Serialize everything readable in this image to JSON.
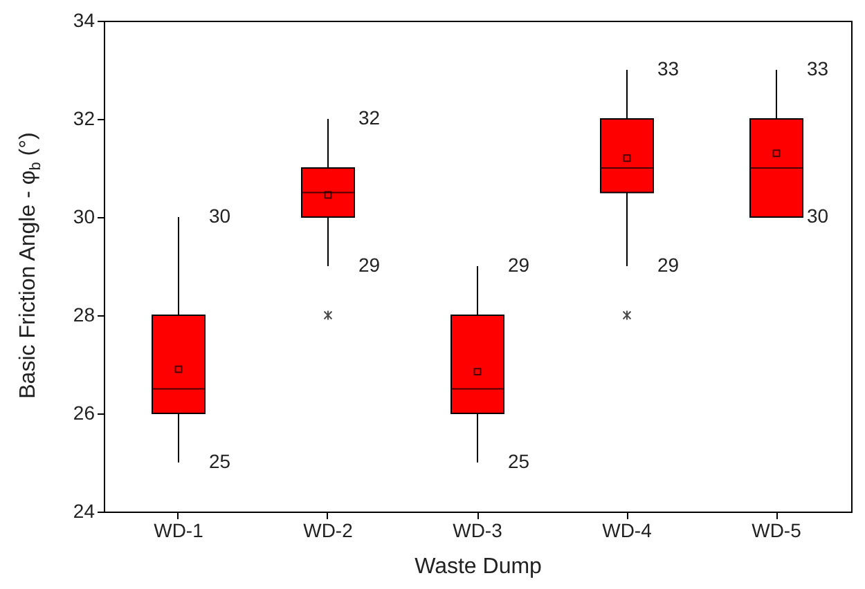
{
  "chart_data": {
    "type": "box",
    "xlabel": "Waste Dump",
    "ylabel": "Basic Friction Angle - φ$_{b}$ (°)",
    "categories": [
      "WD-1",
      "WD-2",
      "WD-3",
      "WD-4",
      "WD-5"
    ],
    "color": "#ff0000",
    "marker": "cross",
    "grid": false,
    "ylim": [
      24,
      34
    ],
    "yticks": [
      24,
      26,
      28,
      30,
      32,
      34
    ],
    "boxes": [
      {
        "low": 25,
        "q1": 26,
        "median": 26.5,
        "q3": 28,
        "high": 30,
        "mean": 26.9
      },
      {
        "low": 29,
        "q1": 30,
        "median": 30.5,
        "q3": 31,
        "high": 32,
        "mean": 30.45,
        "outliers": [
          28
        ]
      },
      {
        "low": 25,
        "q1": 26,
        "median": 26.5,
        "q3": 28,
        "high": 29,
        "mean": 26.85
      },
      {
        "low": 29,
        "q1": 30.5,
        "median": 31,
        "q3": 32,
        "high": 33,
        "mean": 31.2,
        "outliers": [
          28
        ]
      },
      {
        "low": 30,
        "q1": 30,
        "median": 31,
        "q3": 32,
        "high": 33,
        "mean": 31.3
      }
    ],
    "annotations": [
      {
        "text": "30",
        "x": "WD-1",
        "y": 30
      },
      {
        "text": "25",
        "x": "WD-1",
        "y": 25
      },
      {
        "text": "32",
        "x": "WD-2",
        "y": 32
      },
      {
        "text": "29",
        "x": "WD-2",
        "y": 29
      },
      {
        "text": "29",
        "x": "WD-3",
        "y": 29
      },
      {
        "text": "25",
        "x": "WD-3",
        "y": 25
      },
      {
        "text": "33",
        "x": "WD-4",
        "y": 33
      },
      {
        "text": "29",
        "x": "WD-4",
        "y": 29
      },
      {
        "text": "33",
        "x": "WD-5",
        "y": 33
      },
      {
        "text": "30",
        "x": "WD-5",
        "y": 30
      }
    ]
  }
}
